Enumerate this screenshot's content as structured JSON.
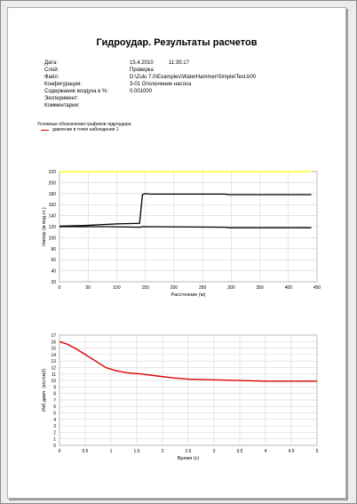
{
  "report": {
    "title": "Гидроудар. Результаты расчетов",
    "fields": [
      {
        "label": "Дата:",
        "value": "15.4.2010",
        "extra": "11:35:17"
      },
      {
        "label": "Слой:",
        "value": "Проверка",
        "extra": ""
      },
      {
        "label": "Файл:",
        "value": "D:\\Zulu 7.0\\Examples\\WaterHammer\\Simple\\Test.b00",
        "extra": ""
      },
      {
        "label": "Конфигурация:",
        "value": "3-01 Отключение насоса",
        "extra": ""
      },
      {
        "label": "Содержание воздуха в %:",
        "value": "0.001000",
        "extra": ""
      },
      {
        "label": "Эксперимент:",
        "value": "",
        "extra": ""
      },
      {
        "label": "Комментарии:",
        "value": "",
        "extra": ""
      }
    ],
    "legend": {
      "title": "Условные обозначения графиков гидроудара",
      "entry": "давление в точке наблюдения 1"
    }
  },
  "chart_data": [
    {
      "type": "line",
      "xlabel": "Расстояние (м)",
      "ylabel": "Напор (м вод.ст.)",
      "xlim": [
        0,
        450
      ],
      "ylim": [
        20,
        220
      ],
      "xticks": [
        0,
        50,
        100,
        150,
        200,
        250,
        300,
        350,
        400,
        450
      ],
      "yticks": [
        20,
        40,
        60,
        80,
        100,
        120,
        140,
        160,
        180,
        200,
        220
      ],
      "grid": true,
      "series": [
        {
          "color": "#ffff00",
          "x": [
            0,
            440
          ],
          "y": [
            220,
            220
          ]
        },
        {
          "color": "#000000",
          "x": [
            0,
            40,
            80,
            100,
            140,
            145,
            150,
            160,
            290,
            295,
            440
          ],
          "y": [
            121,
            122,
            124,
            125,
            126,
            178,
            180,
            179,
            179,
            178,
            178
          ]
        },
        {
          "color": "#000000",
          "x": [
            0,
            40,
            80,
            140,
            145,
            290,
            295,
            440
          ],
          "y": [
            120,
            120,
            120,
            119,
            120,
            119,
            118,
            118
          ]
        }
      ]
    },
    {
      "type": "line",
      "xlabel": "Время (с)",
      "ylabel": "Изб.давл. (кгс/см2)",
      "xlim": [
        0,
        5
      ],
      "ylim": [
        0,
        17
      ],
      "xticks": [
        0,
        0.5,
        1,
        1.5,
        2,
        2.5,
        3,
        3.5,
        4,
        4.5,
        5
      ],
      "yticks": [
        0,
        1,
        2,
        3,
        4,
        5,
        6,
        7,
        8,
        9,
        10,
        11,
        12,
        13,
        14,
        15,
        16,
        17
      ],
      "grid": true,
      "series": [
        {
          "color": "#dd0000",
          "x": [
            0,
            0.15,
            0.3,
            0.5,
            0.7,
            0.9,
            1.1,
            1.3,
            1.6,
            1.9,
            2.2,
            2.5,
            3.0,
            3.5,
            4.0,
            4.5,
            5.0
          ],
          "y": [
            16.0,
            15.6,
            15.0,
            14.0,
            13.0,
            12.0,
            11.5,
            11.2,
            11.0,
            10.7,
            10.4,
            10.2,
            10.1,
            10.0,
            9.9,
            9.9,
            9.9
          ]
        }
      ]
    }
  ]
}
